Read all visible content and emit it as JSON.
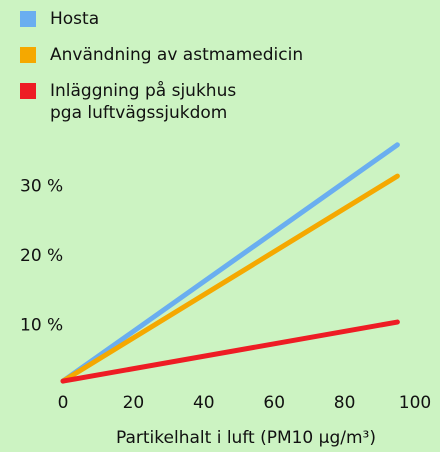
{
  "chart_data": {
    "type": "line",
    "x": [
      0,
      95
    ],
    "series": [
      {
        "name": "Hosta",
        "color": "#6aaef0",
        "values": [
          2,
          36
        ]
      },
      {
        "name": "Användning av astmamedicin",
        "color": "#f5a800",
        "values": [
          2,
          31.5
        ]
      },
      {
        "name": "Inläggning på sjukhus\npga luftvägssjukdom",
        "color": "#ee1c24",
        "values": [
          2,
          10.5
        ]
      }
    ],
    "xlabel": "Partikelhalt i luft (PM10 µg/m³)",
    "xlim": [
      0,
      100
    ],
    "xticks": [
      0,
      20,
      40,
      60,
      80,
      100
    ],
    "ylim": [
      0,
      38
    ],
    "yticks": [
      {
        "value": 10,
        "label": "10 %"
      },
      {
        "value": 20,
        "label": "20 %"
      },
      {
        "value": 30,
        "label": "30 %"
      }
    ],
    "legend": "top-left",
    "grid": false
  }
}
